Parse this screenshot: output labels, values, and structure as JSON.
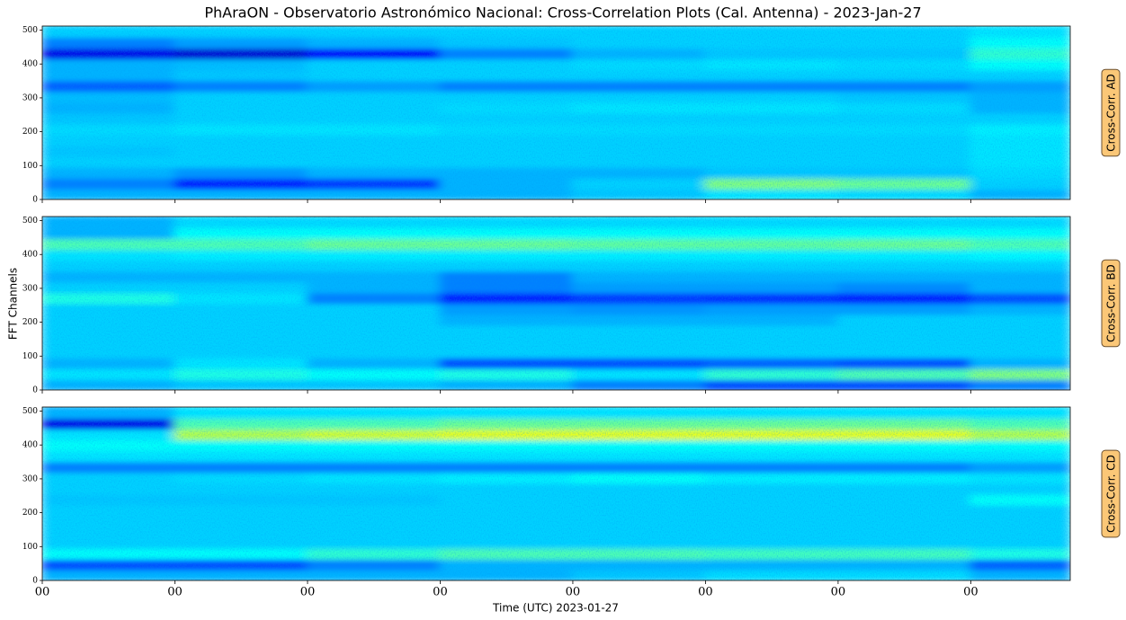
{
  "figure": {
    "title": "PhAraON - Observatorio Astronómico Nacional: Cross-Correlation Plots (Cal. Antenna) - 2023-Jan-27",
    "xlabel": "Time (UTC) 2023-01-27",
    "ylabel": "FFT Channels"
  },
  "chart_data": [
    {
      "type": "heatmap",
      "label": "Cross-Corr. AD",
      "colormap": "jet",
      "zlim": [
        0,
        1
      ],
      "xlim": [
        0,
        7.75
      ],
      "ylim": [
        0,
        512
      ],
      "xticks": [
        0,
        1,
        2,
        3,
        4,
        5,
        6,
        7
      ],
      "yticks": [
        0,
        100,
        200,
        300,
        400,
        500
      ],
      "xedges": [
        0,
        1,
        2,
        3,
        4,
        5,
        6,
        7,
        7.75
      ],
      "yedges": [
        0,
        32,
        64,
        96,
        128,
        160,
        192,
        224,
        256,
        288,
        320,
        352,
        384,
        416,
        448,
        480,
        512
      ],
      "z": [
        [
          0.3,
          0.3,
          0.3,
          0.3,
          0.32,
          0.35,
          0.34,
          0.3
        ],
        [
          0.25,
          0.15,
          0.18,
          0.3,
          0.33,
          0.5,
          0.48,
          0.33
        ],
        [
          0.3,
          0.27,
          0.3,
          0.3,
          0.3,
          0.32,
          0.32,
          0.34
        ],
        [
          0.33,
          0.33,
          0.33,
          0.33,
          0.33,
          0.33,
          0.33,
          0.35
        ],
        [
          0.32,
          0.33,
          0.33,
          0.33,
          0.33,
          0.33,
          0.33,
          0.35
        ],
        [
          0.33,
          0.33,
          0.33,
          0.33,
          0.33,
          0.33,
          0.33,
          0.35
        ],
        [
          0.34,
          0.35,
          0.35,
          0.34,
          0.34,
          0.34,
          0.34,
          0.36
        ],
        [
          0.32,
          0.33,
          0.33,
          0.33,
          0.33,
          0.33,
          0.33,
          0.33
        ],
        [
          0.3,
          0.33,
          0.33,
          0.34,
          0.35,
          0.35,
          0.34,
          0.3
        ],
        [
          0.31,
          0.33,
          0.33,
          0.33,
          0.33,
          0.33,
          0.32,
          0.3
        ],
        [
          0.22,
          0.25,
          0.28,
          0.25,
          0.25,
          0.25,
          0.25,
          0.28
        ],
        [
          0.3,
          0.32,
          0.33,
          0.33,
          0.33,
          0.33,
          0.33,
          0.33
        ],
        [
          0.3,
          0.31,
          0.33,
          0.33,
          0.34,
          0.35,
          0.34,
          0.38
        ],
        [
          0.1,
          0.08,
          0.12,
          0.25,
          0.3,
          0.32,
          0.32,
          0.42
        ],
        [
          0.25,
          0.28,
          0.3,
          0.32,
          0.33,
          0.33,
          0.33,
          0.38
        ],
        [
          0.33,
          0.33,
          0.33,
          0.33,
          0.33,
          0.33,
          0.33,
          0.35
        ]
      ]
    },
    {
      "type": "heatmap",
      "label": "Cross-Corr. BD",
      "colormap": "jet",
      "zlim": [
        0,
        1
      ],
      "xlim": [
        0,
        7.75
      ],
      "ylim": [
        0,
        512
      ],
      "xticks": [
        0,
        1,
        2,
        3,
        4,
        5,
        6,
        7
      ],
      "yticks": [
        0,
        100,
        200,
        300,
        400,
        500
      ],
      "xedges": [
        0,
        1,
        2,
        3,
        4,
        5,
        6,
        7,
        7.75
      ],
      "yedges": [
        0,
        32,
        64,
        96,
        128,
        160,
        192,
        224,
        256,
        288,
        320,
        352,
        384,
        416,
        448,
        480,
        512
      ],
      "z": [
        [
          0.3,
          0.32,
          0.32,
          0.3,
          0.25,
          0.2,
          0.2,
          0.25
        ],
        [
          0.35,
          0.4,
          0.38,
          0.4,
          0.35,
          0.42,
          0.45,
          0.5
        ],
        [
          0.3,
          0.35,
          0.3,
          0.2,
          0.2,
          0.22,
          0.2,
          0.3
        ],
        [
          0.33,
          0.33,
          0.33,
          0.33,
          0.33,
          0.33,
          0.33,
          0.33
        ],
        [
          0.33,
          0.33,
          0.33,
          0.33,
          0.33,
          0.33,
          0.33,
          0.33
        ],
        [
          0.33,
          0.33,
          0.33,
          0.33,
          0.33,
          0.33,
          0.33,
          0.33
        ],
        [
          0.33,
          0.33,
          0.33,
          0.3,
          0.3,
          0.3,
          0.33,
          0.33
        ],
        [
          0.33,
          0.33,
          0.33,
          0.28,
          0.27,
          0.28,
          0.28,
          0.3
        ],
        [
          0.4,
          0.35,
          0.25,
          0.15,
          0.18,
          0.17,
          0.15,
          0.2
        ],
        [
          0.33,
          0.33,
          0.3,
          0.25,
          0.28,
          0.28,
          0.26,
          0.3
        ],
        [
          0.3,
          0.3,
          0.3,
          0.25,
          0.3,
          0.3,
          0.3,
          0.3
        ],
        [
          0.33,
          0.33,
          0.33,
          0.33,
          0.33,
          0.33,
          0.33,
          0.33
        ],
        [
          0.35,
          0.36,
          0.36,
          0.36,
          0.36,
          0.36,
          0.36,
          0.37
        ],
        [
          0.45,
          0.45,
          0.48,
          0.48,
          0.47,
          0.47,
          0.48,
          0.45
        ],
        [
          0.3,
          0.38,
          0.38,
          0.38,
          0.38,
          0.38,
          0.38,
          0.38
        ],
        [
          0.3,
          0.34,
          0.34,
          0.34,
          0.34,
          0.34,
          0.34,
          0.34
        ]
      ]
    },
    {
      "type": "heatmap",
      "label": "Cross-Corr. CD",
      "colormap": "jet",
      "zlim": [
        0,
        1
      ],
      "xlim": [
        0,
        7.75
      ],
      "ylim": [
        0,
        512
      ],
      "xticks": [
        {
          "value": 0,
          "label": "00"
        },
        {
          "value": 1,
          "label": "00"
        },
        {
          "value": 2,
          "label": "00"
        },
        {
          "value": 3,
          "label": "00"
        },
        {
          "value": 4,
          "label": "00"
        },
        {
          "value": 5,
          "label": "00"
        },
        {
          "value": 6,
          "label": "00"
        },
        {
          "value": 7,
          "label": "00"
        }
      ],
      "yticks": [
        0,
        100,
        200,
        300,
        400,
        500
      ],
      "xedges": [
        0,
        1,
        2,
        3,
        4,
        5,
        6,
        7,
        7.75
      ],
      "yedges": [
        0,
        32,
        64,
        96,
        128,
        160,
        192,
        224,
        256,
        288,
        320,
        352,
        384,
        416,
        448,
        480,
        512
      ],
      "z": [
        [
          0.3,
          0.3,
          0.3,
          0.3,
          0.32,
          0.34,
          0.34,
          0.3
        ],
        [
          0.2,
          0.2,
          0.25,
          0.3,
          0.3,
          0.3,
          0.3,
          0.22
        ],
        [
          0.38,
          0.38,
          0.42,
          0.45,
          0.45,
          0.44,
          0.44,
          0.4
        ],
        [
          0.33,
          0.33,
          0.33,
          0.33,
          0.33,
          0.33,
          0.33,
          0.33
        ],
        [
          0.33,
          0.33,
          0.33,
          0.33,
          0.33,
          0.33,
          0.33,
          0.33
        ],
        [
          0.33,
          0.33,
          0.33,
          0.33,
          0.33,
          0.33,
          0.33,
          0.33
        ],
        [
          0.33,
          0.33,
          0.33,
          0.33,
          0.33,
          0.33,
          0.33,
          0.33
        ],
        [
          0.32,
          0.32,
          0.32,
          0.33,
          0.33,
          0.33,
          0.33,
          0.38
        ],
        [
          0.33,
          0.33,
          0.33,
          0.33,
          0.33,
          0.33,
          0.33,
          0.33
        ],
        [
          0.33,
          0.34,
          0.35,
          0.36,
          0.38,
          0.36,
          0.36,
          0.35
        ],
        [
          0.25,
          0.25,
          0.25,
          0.25,
          0.25,
          0.25,
          0.25,
          0.28
        ],
        [
          0.35,
          0.35,
          0.35,
          0.35,
          0.35,
          0.35,
          0.35,
          0.35
        ],
        [
          0.38,
          0.38,
          0.38,
          0.38,
          0.38,
          0.38,
          0.38,
          0.38
        ],
        [
          0.35,
          0.55,
          0.58,
          0.6,
          0.6,
          0.6,
          0.6,
          0.55
        ],
        [
          0.1,
          0.45,
          0.45,
          0.48,
          0.48,
          0.48,
          0.48,
          0.45
        ],
        [
          0.3,
          0.35,
          0.35,
          0.35,
          0.35,
          0.35,
          0.35,
          0.35
        ]
      ]
    }
  ]
}
